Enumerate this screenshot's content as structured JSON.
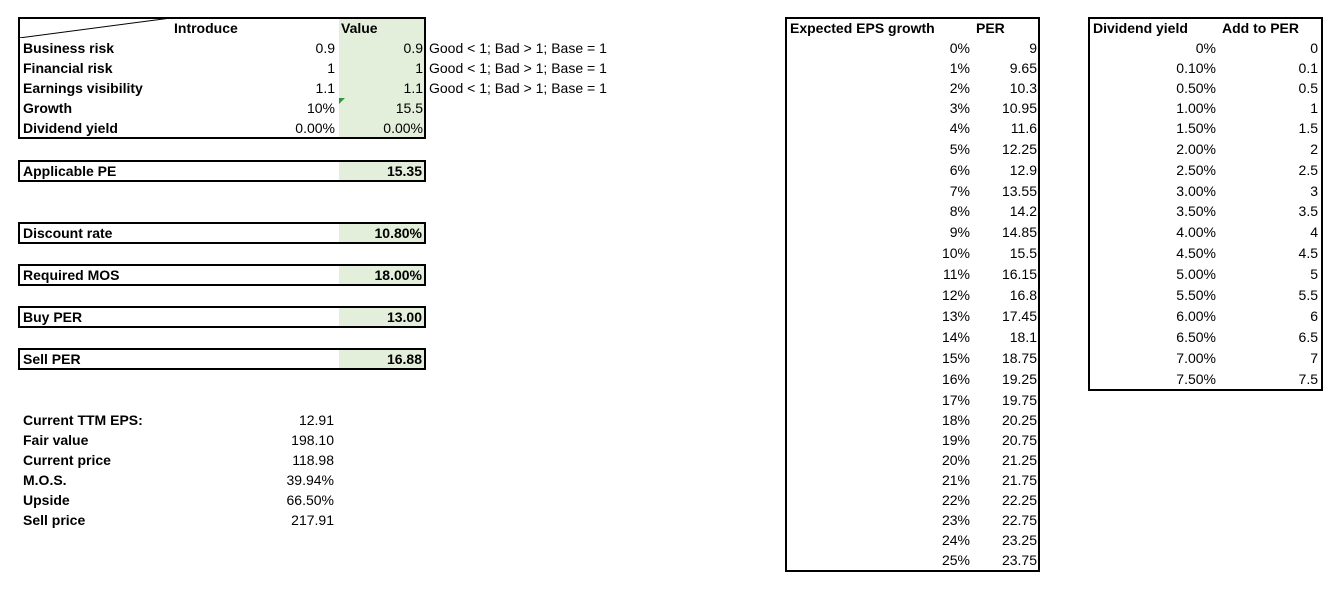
{
  "input_table": {
    "headers": {
      "col1": "Introduce",
      "col2": "Value"
    },
    "rows": [
      {
        "label": "Business risk",
        "introduce": "0.9",
        "value": "0.9",
        "note": "Good < 1; Bad > 1; Base = 1"
      },
      {
        "label": "Financial risk",
        "introduce": "1",
        "value": "1",
        "note": "Good < 1; Bad > 1; Base = 1"
      },
      {
        "label": "Earnings visibility",
        "introduce": "1.1",
        "value": "1.1",
        "note": "Good < 1; Bad > 1; Base = 1"
      },
      {
        "label": "Growth",
        "introduce": "10%",
        "value": "15.5",
        "note": ""
      },
      {
        "label": "Dividend yield",
        "introduce": "0.00%",
        "value": "0.00%",
        "note": ""
      }
    ]
  },
  "summary": [
    {
      "label": "Applicable PE",
      "value": "15.35"
    },
    {
      "label": "Discount rate",
      "value": "10.80%"
    },
    {
      "label": "Required MOS",
      "value": "18.00%"
    },
    {
      "label": "Buy PER",
      "value": "13.00"
    },
    {
      "label": "Sell PER",
      "value": "16.88"
    }
  ],
  "results": [
    {
      "label": "Current TTM EPS:",
      "value": "12.91"
    },
    {
      "label": "Fair value",
      "value": "198.10"
    },
    {
      "label": "Current price",
      "value": "118.98"
    },
    {
      "label": "M.O.S.",
      "value": "39.94%"
    },
    {
      "label": "Upside",
      "value": "66.50%"
    },
    {
      "label": "Sell price",
      "value": "217.91"
    }
  ],
  "eps_table": {
    "headers": {
      "growth": "Expected EPS growth",
      "per": "PER"
    },
    "rows": [
      [
        "0%",
        "9"
      ],
      [
        "1%",
        "9.65"
      ],
      [
        "2%",
        "10.3"
      ],
      [
        "3%",
        "10.95"
      ],
      [
        "4%",
        "11.6"
      ],
      [
        "5%",
        "12.25"
      ],
      [
        "6%",
        "12.9"
      ],
      [
        "7%",
        "13.55"
      ],
      [
        "8%",
        "14.2"
      ],
      [
        "9%",
        "14.85"
      ],
      [
        "10%",
        "15.5"
      ],
      [
        "11%",
        "16.15"
      ],
      [
        "12%",
        "16.8"
      ],
      [
        "13%",
        "17.45"
      ],
      [
        "14%",
        "18.1"
      ],
      [
        "15%",
        "18.75"
      ],
      [
        "16%",
        "19.25"
      ],
      [
        "17%",
        "19.75"
      ],
      [
        "18%",
        "20.25"
      ],
      [
        "19%",
        "20.75"
      ],
      [
        "20%",
        "21.25"
      ],
      [
        "21%",
        "21.75"
      ],
      [
        "22%",
        "22.25"
      ],
      [
        "23%",
        "22.75"
      ],
      [
        "24%",
        "23.25"
      ],
      [
        "25%",
        "23.75"
      ]
    ]
  },
  "dividend_table": {
    "headers": {
      "yield": "Dividend yield",
      "add": "Add to PER"
    },
    "rows": [
      [
        "0%",
        "0"
      ],
      [
        "0.10%",
        "0.1"
      ],
      [
        "0.50%",
        "0.5"
      ],
      [
        "1.00%",
        "1"
      ],
      [
        "1.50%",
        "1.5"
      ],
      [
        "2.00%",
        "2"
      ],
      [
        "2.50%",
        "2.5"
      ],
      [
        "3.00%",
        "3"
      ],
      [
        "3.50%",
        "3.5"
      ],
      [
        "4.00%",
        "4"
      ],
      [
        "4.50%",
        "4.5"
      ],
      [
        "5.00%",
        "5"
      ],
      [
        "5.50%",
        "5.5"
      ],
      [
        "6.00%",
        "6"
      ],
      [
        "6.50%",
        "6.5"
      ],
      [
        "7.00%",
        "7"
      ],
      [
        "7.50%",
        "7.5"
      ]
    ]
  },
  "colors": {
    "value_fill": "#e3efda",
    "comment_marker": "#2e9a3c",
    "border": "#000000"
  }
}
